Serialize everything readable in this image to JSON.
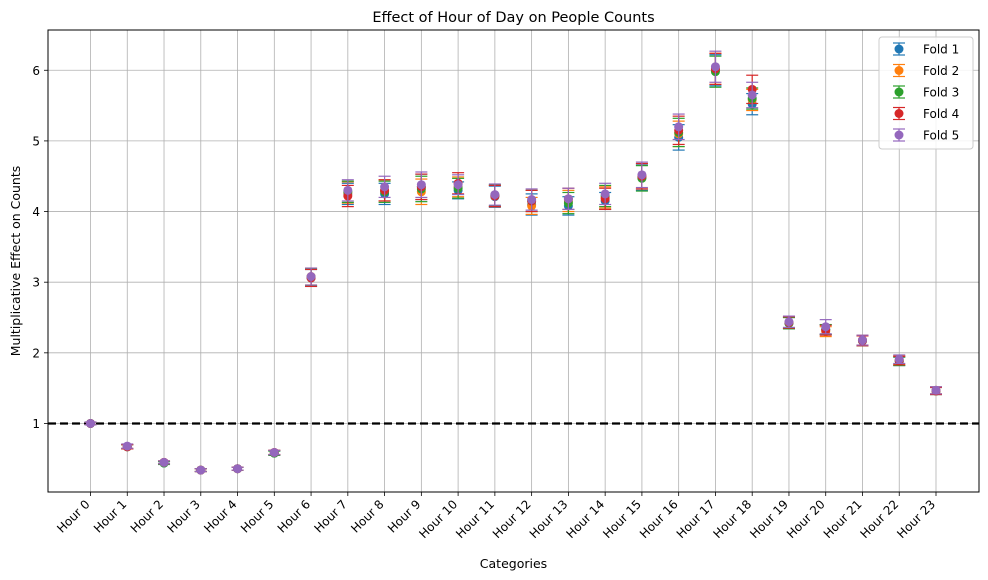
{
  "chart_data": {
    "type": "scatter",
    "title": "Effect of Hour of Day on People Counts",
    "xlabel": "Categories",
    "ylabel": "Multiplicative Effect on Counts",
    "categories": [
      "Hour 0",
      "Hour 1",
      "Hour 2",
      "Hour 3",
      "Hour 4",
      "Hour 5",
      "Hour 6",
      "Hour 7",
      "Hour 8",
      "Hour 9",
      "Hour 10",
      "Hour 11",
      "Hour 12",
      "Hour 13",
      "Hour 14",
      "Hour 15",
      "Hour 16",
      "Hour 17",
      "Hour 18",
      "Hour 19",
      "Hour 20",
      "Hour 21",
      "Hour 22",
      "Hour 23"
    ],
    "ylim": [
      0.03,
      6.57
    ],
    "yticks": [
      1,
      2,
      3,
      4,
      5,
      6
    ],
    "grid": true,
    "reference_line": 1,
    "legend_position": "top-right",
    "series": [
      {
        "name": "Fold 1",
        "color": "#1f77b4",
        "values": [
          1.0,
          0.67,
          0.44,
          0.34,
          0.36,
          0.58,
          3.06,
          4.25,
          4.25,
          4.35,
          4.3,
          4.21,
          4.1,
          4.08,
          4.15,
          4.48,
          5.05,
          6.0,
          5.52,
          2.42,
          2.33,
          2.17,
          1.88,
          1.46
        ],
        "errors": [
          0.02,
          0.03,
          0.02,
          0.02,
          0.02,
          0.03,
          0.12,
          0.15,
          0.15,
          0.18,
          0.12,
          0.15,
          0.15,
          0.13,
          0.12,
          0.18,
          0.18,
          0.22,
          0.15,
          0.08,
          0.07,
          0.07,
          0.06,
          0.05
        ]
      },
      {
        "name": "Fold 2",
        "color": "#ff7f0e",
        "values": [
          1.0,
          0.67,
          0.45,
          0.34,
          0.36,
          0.59,
          3.08,
          4.27,
          4.3,
          4.28,
          4.35,
          4.22,
          4.08,
          4.15,
          4.2,
          4.5,
          5.1,
          6.02,
          5.58,
          2.43,
          2.3,
          2.18,
          1.9,
          1.47
        ],
        "errors": [
          0.02,
          0.03,
          0.02,
          0.02,
          0.02,
          0.03,
          0.12,
          0.15,
          0.15,
          0.18,
          0.14,
          0.15,
          0.12,
          0.15,
          0.15,
          0.18,
          0.18,
          0.22,
          0.15,
          0.08,
          0.07,
          0.07,
          0.06,
          0.05
        ]
      },
      {
        "name": "Fold 3",
        "color": "#2ca02c",
        "values": [
          1.0,
          0.67,
          0.44,
          0.34,
          0.36,
          0.58,
          3.07,
          4.28,
          4.28,
          4.32,
          4.33,
          4.23,
          4.15,
          4.12,
          4.22,
          4.47,
          5.12,
          5.98,
          5.6,
          2.42,
          2.33,
          2.17,
          1.88,
          1.46
        ],
        "errors": [
          0.02,
          0.03,
          0.02,
          0.02,
          0.02,
          0.03,
          0.12,
          0.15,
          0.15,
          0.18,
          0.14,
          0.15,
          0.15,
          0.15,
          0.15,
          0.18,
          0.2,
          0.22,
          0.15,
          0.08,
          0.07,
          0.07,
          0.06,
          0.05
        ]
      },
      {
        "name": "Fold 4",
        "color": "#d62728",
        "values": [
          1.0,
          0.67,
          0.45,
          0.34,
          0.36,
          0.59,
          3.06,
          4.22,
          4.3,
          4.35,
          4.4,
          4.22,
          4.15,
          4.18,
          4.18,
          4.5,
          5.15,
          6.02,
          5.73,
          2.43,
          2.32,
          2.17,
          1.89,
          1.46
        ],
        "errors": [
          0.02,
          0.03,
          0.02,
          0.02,
          0.02,
          0.03,
          0.12,
          0.15,
          0.15,
          0.18,
          0.15,
          0.15,
          0.15,
          0.15,
          0.15,
          0.18,
          0.2,
          0.22,
          0.2,
          0.08,
          0.07,
          0.07,
          0.06,
          0.05
        ]
      },
      {
        "name": "Fold 5",
        "color": "#9467bd",
        "values": [
          1.0,
          0.68,
          0.45,
          0.34,
          0.36,
          0.59,
          3.08,
          4.3,
          4.35,
          4.38,
          4.38,
          4.24,
          4.17,
          4.18,
          4.25,
          4.52,
          5.2,
          6.05,
          5.65,
          2.44,
          2.37,
          2.18,
          1.91,
          1.47
        ],
        "errors": [
          0.02,
          0.03,
          0.02,
          0.02,
          0.02,
          0.03,
          0.12,
          0.15,
          0.15,
          0.18,
          0.14,
          0.15,
          0.15,
          0.15,
          0.15,
          0.18,
          0.18,
          0.22,
          0.18,
          0.08,
          0.1,
          0.07,
          0.06,
          0.05
        ]
      }
    ]
  }
}
